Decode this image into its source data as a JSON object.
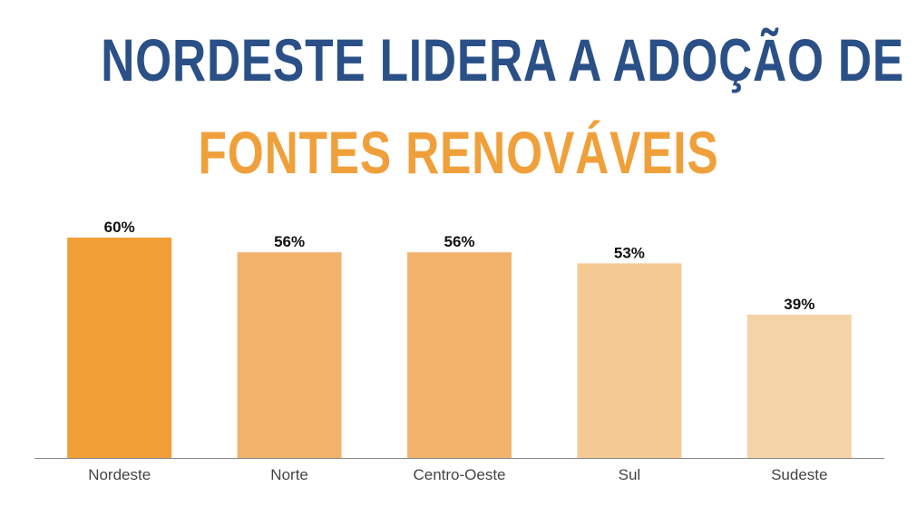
{
  "title": {
    "line1": "NORDESTE LIDERA A ADOÇÃO DE",
    "line2": "FONTES RENOVÁVEIS",
    "line1_color": "#2a5087",
    "line2_color": "#f0a03a"
  },
  "chart_data": {
    "type": "bar",
    "categories": [
      "Nordeste",
      "Norte",
      "Centro-Oeste",
      "Sul",
      "Sudeste"
    ],
    "values": [
      60,
      56,
      56,
      53,
      39
    ],
    "value_labels": [
      "60%",
      "56%",
      "56%",
      "53%",
      "39%"
    ],
    "bar_colors": [
      "#f09e36",
      "#f1b36c",
      "#f1b36c",
      "#f5c992",
      "#f4d3a8"
    ],
    "axis_color": "#888888",
    "ylim": [
      0,
      60
    ],
    "grid": false,
    "legend": "none"
  }
}
